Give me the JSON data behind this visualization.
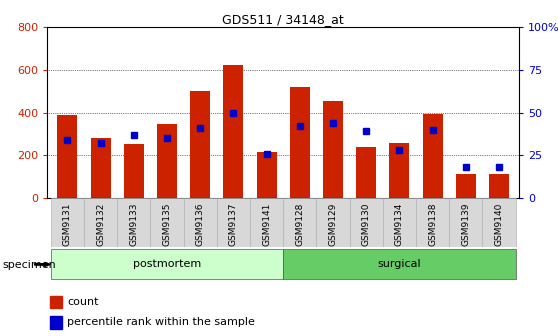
{
  "title": "GDS511 / 34148_at",
  "categories": [
    "GSM9131",
    "GSM9132",
    "GSM9133",
    "GSM9135",
    "GSM9136",
    "GSM9137",
    "GSM9141",
    "GSM9128",
    "GSM9129",
    "GSM9130",
    "GSM9134",
    "GSM9138",
    "GSM9139",
    "GSM9140"
  ],
  "counts": [
    390,
    280,
    255,
    345,
    500,
    620,
    215,
    520,
    455,
    238,
    260,
    395,
    115,
    115
  ],
  "percentiles": [
    34,
    32,
    37,
    35,
    41,
    50,
    26,
    42,
    44,
    39,
    28,
    40,
    18,
    18
  ],
  "groups": [
    {
      "label": "postmortem",
      "start": 0,
      "end": 7,
      "color": "#ccffcc"
    },
    {
      "label": "surgical",
      "start": 7,
      "end": 14,
      "color": "#66cc66"
    }
  ],
  "bar_color": "#cc2200",
  "percentile_color": "#0000cc",
  "ylim_left": [
    0,
    800
  ],
  "ylim_right": [
    0,
    100
  ],
  "yticks_left": [
    0,
    200,
    400,
    600,
    800
  ],
  "yticks_right": [
    0,
    25,
    50,
    75,
    100
  ],
  "ylabel_left_color": "#cc2200",
  "ylabel_right_color": "#0000cc",
  "grid_color": "#000000",
  "bg_color": "#ffffff",
  "specimen_label": "specimen",
  "legend_count_label": "count",
  "legend_percentile_label": "percentile rank within the sample",
  "tick_label_bg": "#d8d8d8"
}
